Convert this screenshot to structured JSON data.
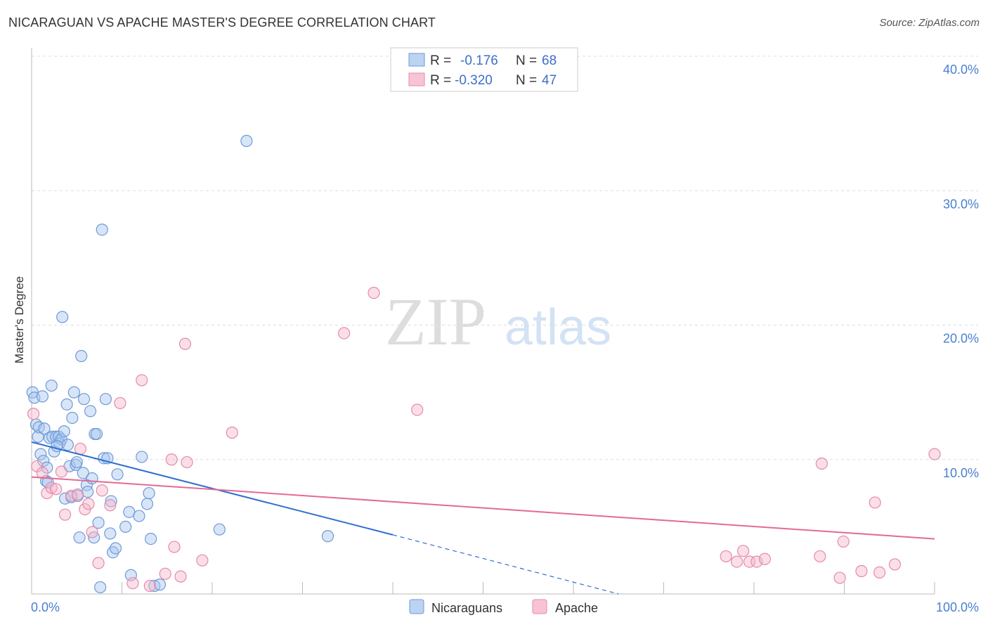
{
  "title": "NICARAGUAN VS APACHE MASTER'S DEGREE CORRELATION CHART",
  "source": "Source: ZipAtlas.com",
  "watermark": {
    "zip": "ZIP",
    "atlas": "atlas"
  },
  "colors": {
    "blue_fill": "#a9c6ee",
    "blue_stroke": "#6d9ad9",
    "blue_line": "#2e6fd0",
    "pink_fill": "#f5b8cb",
    "pink_stroke": "#e68aa7",
    "pink_line": "#e46a93",
    "grid": "#dddddd",
    "tick_text": "#4a7fd1"
  },
  "legend": {
    "rows": [
      {
        "r_label": "R =",
        "r_value": "-0.176",
        "n_label": "N =",
        "n_value": "68"
      },
      {
        "r_label": "R =",
        "r_value": "-0.320",
        "n_label": "N =",
        "n_value": "47"
      }
    ]
  },
  "chart_data": {
    "type": "scatter",
    "title": "NICARAGUAN VS APACHE MASTER'S DEGREE CORRELATION CHART",
    "xlabel": "",
    "ylabel": "Master's Degree",
    "xlim": [
      0,
      100
    ],
    "ylim": [
      0,
      40
    ],
    "x_tick_labels": [
      "0.0%",
      "100.0%"
    ],
    "y_ticks": [
      10,
      20,
      30,
      40
    ],
    "y_tick_labels": [
      "10.0%",
      "20.0%",
      "30.0%",
      "40.0%"
    ],
    "grid": true,
    "legend_position": "top-center",
    "series": [
      {
        "name": "Nicaraguans",
        "r": -0.176,
        "n": 68,
        "trend": {
          "x": [
            0,
            40
          ],
          "y": [
            11.3,
            4.4
          ],
          "dashed_to": [
            65,
            0
          ]
        },
        "points": [
          [
            0.1,
            15.0
          ],
          [
            0.3,
            14.6
          ],
          [
            0.5,
            12.6
          ],
          [
            0.7,
            11.7
          ],
          [
            0.8,
            12.4
          ],
          [
            1.0,
            10.4
          ],
          [
            1.2,
            14.7
          ],
          [
            1.3,
            9.9
          ],
          [
            1.4,
            12.3
          ],
          [
            1.6,
            8.4
          ],
          [
            1.7,
            9.4
          ],
          [
            2.0,
            11.6
          ],
          [
            2.2,
            15.5
          ],
          [
            2.3,
            11.7
          ],
          [
            2.5,
            10.6
          ],
          [
            2.7,
            11.7
          ],
          [
            3.0,
            11.7
          ],
          [
            3.1,
            11.2
          ],
          [
            3.3,
            11.5
          ],
          [
            3.4,
            20.6
          ],
          [
            3.6,
            12.1
          ],
          [
            3.7,
            7.1
          ],
          [
            3.9,
            14.1
          ],
          [
            4.0,
            11.1
          ],
          [
            4.2,
            9.5
          ],
          [
            4.4,
            7.2
          ],
          [
            4.5,
            13.1
          ],
          [
            4.7,
            15.0
          ],
          [
            4.9,
            9.6
          ],
          [
            5.1,
            7.3
          ],
          [
            5.3,
            4.2
          ],
          [
            5.5,
            17.7
          ],
          [
            5.7,
            9.0
          ],
          [
            5.8,
            14.5
          ],
          [
            6.1,
            8.1
          ],
          [
            6.2,
            7.6
          ],
          [
            6.5,
            13.6
          ],
          [
            6.7,
            8.6
          ],
          [
            7.0,
            11.9
          ],
          [
            7.2,
            11.9
          ],
          [
            7.4,
            5.3
          ],
          [
            7.8,
            27.1
          ],
          [
            8.0,
            10.1
          ],
          [
            8.2,
            14.5
          ],
          [
            8.4,
            10.1
          ],
          [
            8.7,
            4.5
          ],
          [
            8.8,
            6.9
          ],
          [
            9.0,
            3.1
          ],
          [
            9.3,
            3.4
          ],
          [
            9.5,
            8.9
          ],
          [
            10.4,
            5.0
          ],
          [
            10.8,
            6.1
          ],
          [
            11.0,
            1.4
          ],
          [
            11.9,
            5.8
          ],
          [
            12.2,
            10.2
          ],
          [
            12.8,
            6.7
          ],
          [
            13.0,
            7.5
          ],
          [
            13.2,
            4.1
          ],
          [
            13.6,
            0.6
          ],
          [
            14.2,
            0.7
          ],
          [
            7.6,
            0.5
          ],
          [
            20.8,
            4.8
          ],
          [
            23.8,
            33.7
          ],
          [
            32.8,
            4.3
          ],
          [
            2.8,
            11.0
          ],
          [
            1.8,
            8.3
          ],
          [
            6.9,
            4.2
          ],
          [
            5.0,
            9.8
          ]
        ]
      },
      {
        "name": "Apache",
        "r": -0.32,
        "n": 47,
        "trend": {
          "x": [
            0,
            100
          ],
          "y": [
            8.7,
            4.1
          ]
        },
        "points": [
          [
            0.2,
            13.4
          ],
          [
            0.6,
            9.5
          ],
          [
            1.2,
            9.0
          ],
          [
            1.7,
            7.5
          ],
          [
            2.2,
            7.9
          ],
          [
            2.7,
            7.8
          ],
          [
            3.3,
            9.1
          ],
          [
            3.7,
            5.9
          ],
          [
            4.4,
            7.3
          ],
          [
            5.1,
            7.4
          ],
          [
            5.4,
            10.8
          ],
          [
            5.9,
            6.3
          ],
          [
            6.3,
            6.7
          ],
          [
            6.7,
            4.6
          ],
          [
            7.4,
            2.3
          ],
          [
            7.8,
            7.7
          ],
          [
            8.7,
            6.6
          ],
          [
            9.8,
            14.2
          ],
          [
            11.2,
            0.8
          ],
          [
            12.2,
            15.9
          ],
          [
            13.1,
            0.6
          ],
          [
            14.8,
            1.5
          ],
          [
            15.5,
            10.0
          ],
          [
            15.8,
            3.5
          ],
          [
            16.5,
            1.3
          ],
          [
            17.0,
            18.6
          ],
          [
            17.2,
            9.8
          ],
          [
            18.9,
            2.5
          ],
          [
            22.2,
            12.0
          ],
          [
            34.6,
            19.4
          ],
          [
            37.9,
            22.4
          ],
          [
            42.7,
            13.7
          ],
          [
            76.9,
            2.8
          ],
          [
            78.1,
            2.4
          ],
          [
            78.8,
            3.2
          ],
          [
            79.5,
            2.4
          ],
          [
            80.3,
            2.4
          ],
          [
            81.2,
            2.6
          ],
          [
            87.3,
            2.8
          ],
          [
            87.5,
            9.7
          ],
          [
            89.5,
            1.2
          ],
          [
            89.9,
            3.9
          ],
          [
            91.9,
            1.7
          ],
          [
            93.4,
            6.8
          ],
          [
            93.9,
            1.6
          ],
          [
            95.6,
            2.2
          ],
          [
            100.0,
            10.4
          ]
        ]
      }
    ]
  },
  "bottom_legend": [
    {
      "label": "Nicaraguans"
    },
    {
      "label": "Apache"
    }
  ]
}
